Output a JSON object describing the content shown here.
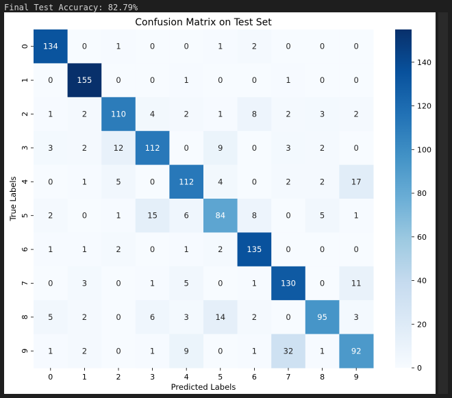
{
  "console": {
    "text": "Final Test Accuracy: 82.79%"
  },
  "chart_data": {
    "type": "heatmap",
    "title": "Confusion Matrix on Test Set",
    "xlabel": "Predicted Labels",
    "ylabel": "True Labels",
    "x_categories": [
      "0",
      "1",
      "2",
      "3",
      "4",
      "5",
      "6",
      "7",
      "8",
      "9"
    ],
    "y_categories": [
      "0",
      "1",
      "2",
      "3",
      "4",
      "5",
      "6",
      "7",
      "8",
      "9"
    ],
    "matrix": [
      [
        134,
        0,
        1,
        0,
        0,
        1,
        2,
        0,
        0,
        0
      ],
      [
        0,
        155,
        0,
        0,
        1,
        0,
        0,
        1,
        0,
        0
      ],
      [
        1,
        2,
        110,
        4,
        2,
        1,
        8,
        2,
        3,
        2
      ],
      [
        3,
        2,
        12,
        112,
        0,
        9,
        0,
        3,
        2,
        0
      ],
      [
        0,
        1,
        5,
        0,
        112,
        4,
        0,
        2,
        2,
        17
      ],
      [
        2,
        0,
        1,
        15,
        6,
        84,
        8,
        0,
        5,
        1
      ],
      [
        1,
        1,
        2,
        0,
        1,
        2,
        135,
        0,
        0,
        0
      ],
      [
        0,
        3,
        0,
        1,
        5,
        0,
        1,
        130,
        0,
        11
      ],
      [
        5,
        2,
        0,
        6,
        3,
        14,
        2,
        0,
        95,
        3
      ],
      [
        1,
        2,
        0,
        1,
        9,
        0,
        1,
        32,
        1,
        92
      ]
    ],
    "colormap": "Blues",
    "colormap_low": "#f7fbff",
    "colormap_high": "#08306b",
    "value_range": [
      0,
      155
    ],
    "colorbar_ticks": [
      0,
      20,
      40,
      60,
      80,
      100,
      120,
      140
    ]
  }
}
